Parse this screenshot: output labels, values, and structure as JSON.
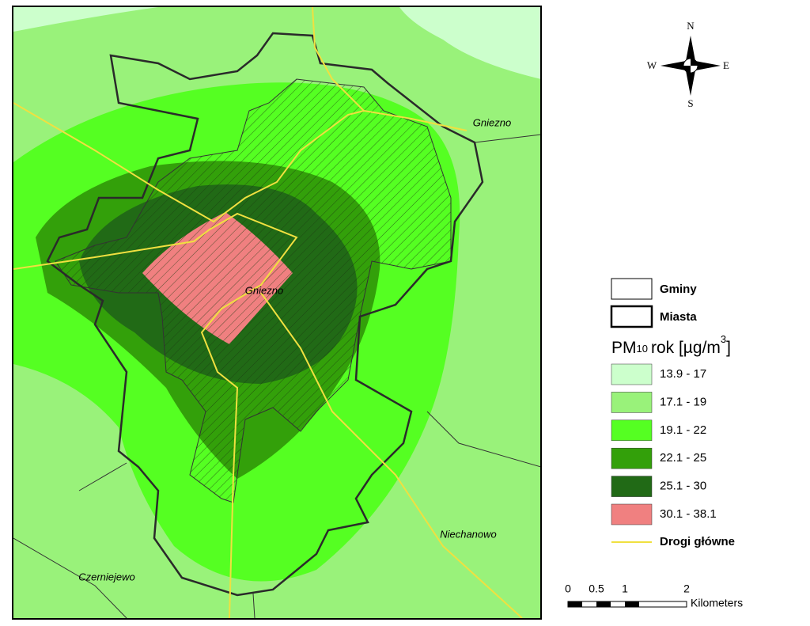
{
  "map": {
    "places": [
      "Gniezno",
      "Gniezno",
      "Niechanowo",
      "Czerniejewo"
    ]
  },
  "compass": {
    "north": "N",
    "south": "S",
    "east": "E",
    "west": "W"
  },
  "legend": {
    "gminy": "Gminy",
    "miasta": "Miasta",
    "title": {
      "pm": "PM",
      "sub": "10",
      "rest": "rok [µg/m",
      "sup": "3",
      "close": "]"
    },
    "classes": [
      {
        "label": "13.9 - 17",
        "color": "#ccffcc"
      },
      {
        "label": "17.1 - 19",
        "color": "#99f27a"
      },
      {
        "label": "19.1 - 22",
        "color": "#55ff22"
      },
      {
        "label": "22.1 - 25",
        "color": "#33a00a"
      },
      {
        "label": "25.1 - 30",
        "color": "#216a16"
      },
      {
        "label": "30.1 - 38.1",
        "color": "#f08080"
      }
    ],
    "roads": "Drogi główne"
  },
  "scale": {
    "ticks": [
      "0",
      "0.5",
      "1",
      "2"
    ],
    "unit": "Kilometers"
  }
}
